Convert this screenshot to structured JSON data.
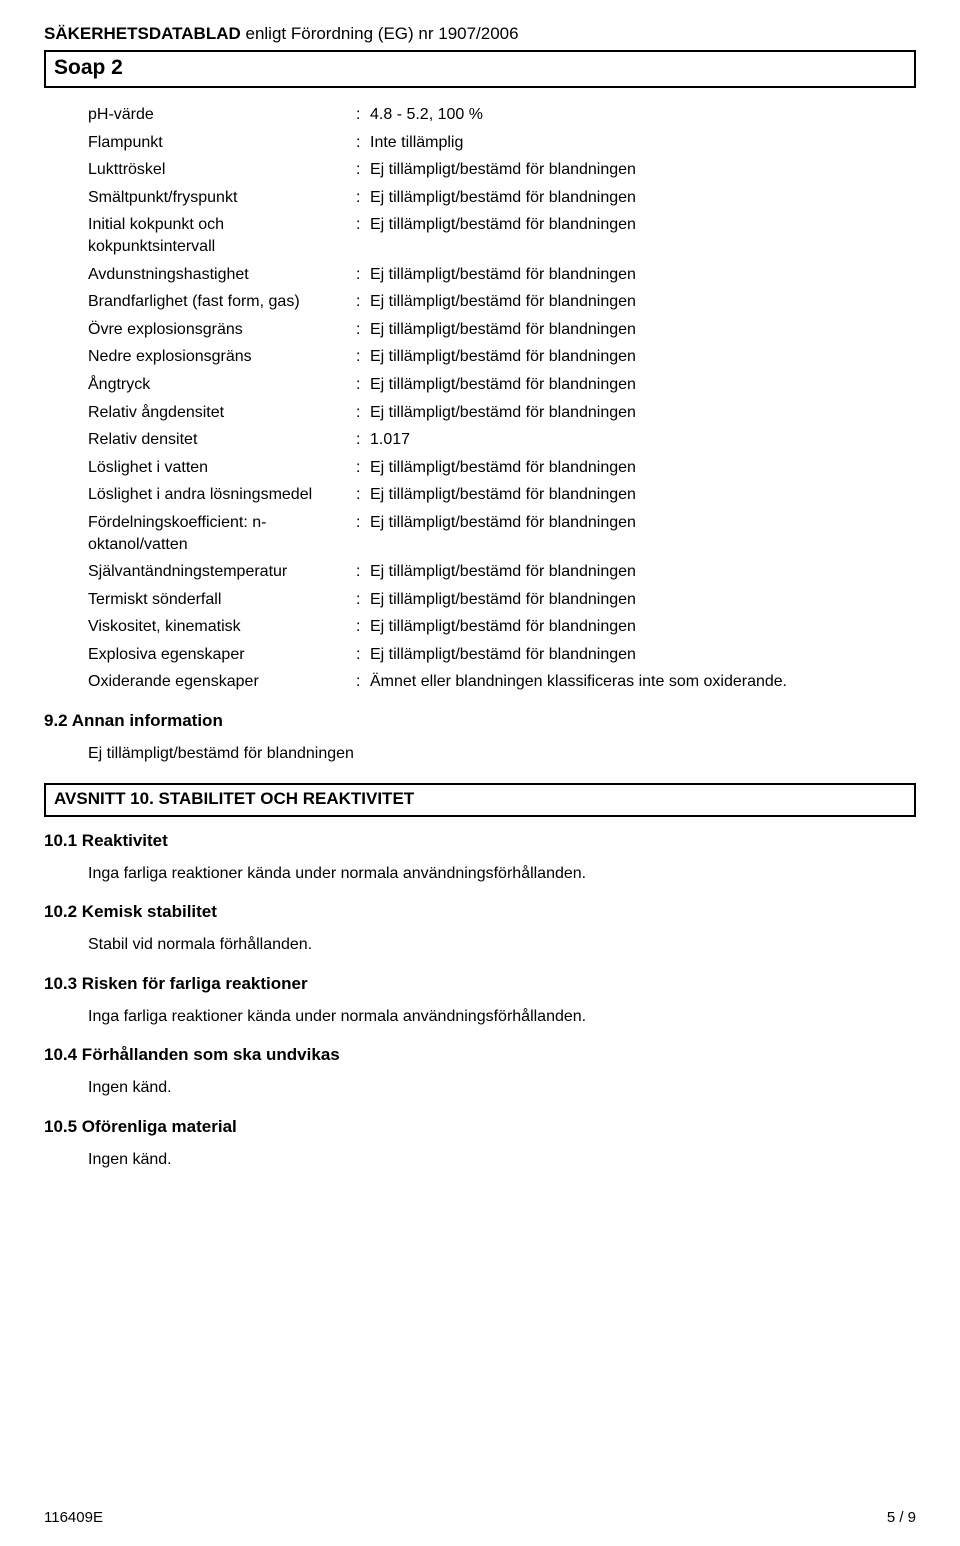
{
  "header": {
    "sds_bold": "SÄKERHETSDATABLAD",
    "sds_rest": " enligt Förordning (EG) nr 1907/2006",
    "product_name": "Soap 2"
  },
  "colon": ":",
  "props": [
    {
      "label": "pH-värde",
      "value": "4.8 - 5.2, 100 %"
    },
    {
      "label": "Flampunkt",
      "value": "Inte tillämplig"
    },
    {
      "label": "Lukttröskel",
      "value": "Ej tillämpligt/bestämd för blandningen"
    },
    {
      "label": "Smältpunkt/fryspunkt",
      "value": "Ej tillämpligt/bestämd för blandningen"
    },
    {
      "label": "Initial kokpunkt och kokpunktsintervall",
      "value": "Ej tillämpligt/bestämd för blandningen"
    },
    {
      "label": "Avdunstningshastighet",
      "value": "Ej tillämpligt/bestämd för blandningen"
    },
    {
      "label": "Brandfarlighet (fast form, gas)",
      "value": "Ej tillämpligt/bestämd för blandningen"
    },
    {
      "label": "Övre explosionsgräns",
      "value": "Ej tillämpligt/bestämd för blandningen"
    },
    {
      "label": "Nedre explosionsgräns",
      "value": "Ej tillämpligt/bestämd för blandningen"
    },
    {
      "label": "Ångtryck",
      "value": "Ej tillämpligt/bestämd för blandningen"
    },
    {
      "label": "Relativ ångdensitet",
      "value": "Ej tillämpligt/bestämd för blandningen"
    },
    {
      "label": "Relativ densitet",
      "value": "1.017"
    },
    {
      "label": "Löslighet i vatten",
      "value": "Ej tillämpligt/bestämd för blandningen"
    },
    {
      "label": "Löslighet i andra lösningsmedel",
      "value": "Ej tillämpligt/bestämd för blandningen"
    },
    {
      "label": "Fördelningskoefficient: n-oktanol/vatten",
      "value": "Ej tillämpligt/bestämd för blandningen"
    },
    {
      "label": "Självantändningstemperatur",
      "value": "Ej tillämpligt/bestämd för blandningen"
    },
    {
      "label": "Termiskt sönderfall",
      "value": "Ej tillämpligt/bestämd för blandningen"
    },
    {
      "label": "Viskositet, kinematisk",
      "value": "Ej tillämpligt/bestämd för blandningen"
    },
    {
      "label": "Explosiva egenskaper",
      "value": "Ej tillämpligt/bestämd för blandningen"
    },
    {
      "label": "Oxiderande egenskaper",
      "value": "Ämnet eller blandningen klassificeras inte som oxiderande."
    }
  ],
  "s92": {
    "heading": "9.2 Annan information",
    "body": "Ej tillämpligt/bestämd för blandningen"
  },
  "s10": {
    "title": "AVSNITT 10. STABILITET OCH REAKTIVITET",
    "items": [
      {
        "heading": "10.1 Reaktivitet",
        "body": "Inga farliga reaktioner kända under normala användningsförhållanden."
      },
      {
        "heading": "10.2 Kemisk stabilitet",
        "body": "Stabil vid normala förhållanden."
      },
      {
        "heading": "10.3 Risken för farliga reaktioner",
        "body": "Inga farliga reaktioner kända under normala användningsförhållanden."
      },
      {
        "heading": "10.4 Förhållanden som ska undvikas",
        "body": "Ingen känd."
      },
      {
        "heading": "10.5 Oförenliga material",
        "body": "Ingen känd."
      }
    ]
  },
  "footer": {
    "left": "116409E",
    "right": "5 / 9"
  }
}
